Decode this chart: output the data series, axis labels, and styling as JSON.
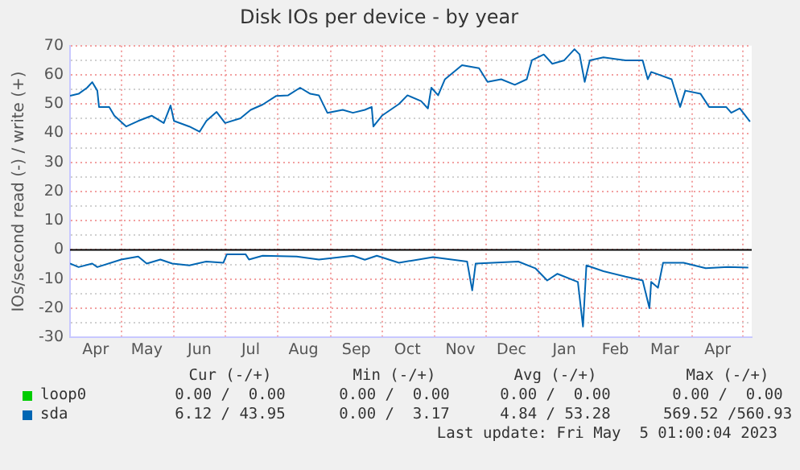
{
  "chart_data": {
    "type": "line",
    "title": "Disk IOs per device - by year",
    "ylabel": "IOs/second read (-) / write (+)",
    "xlim": [
      "2022-04-01",
      "2023-05-06"
    ],
    "xticks": [
      {
        "value": "2022-04-16",
        "label": "Apr"
      },
      {
        "value": "2022-05-01",
        "label": null
      },
      {
        "value": "2022-05-16",
        "label": "May"
      },
      {
        "value": "2022-06-01",
        "label": null
      },
      {
        "value": "2022-06-16",
        "label": "Jun"
      },
      {
        "value": "2022-07-01",
        "label": null
      },
      {
        "value": "2022-07-16",
        "label": "Jul"
      },
      {
        "value": "2022-08-01",
        "label": null
      },
      {
        "value": "2022-08-16",
        "label": "Aug"
      },
      {
        "value": "2022-09-01",
        "label": null
      },
      {
        "value": "2022-09-16",
        "label": "Sep"
      },
      {
        "value": "2022-10-01",
        "label": null
      },
      {
        "value": "2022-10-16",
        "label": "Oct"
      },
      {
        "value": "2022-11-01",
        "label": null
      },
      {
        "value": "2022-11-16",
        "label": "Nov"
      },
      {
        "value": "2022-12-01",
        "label": null
      },
      {
        "value": "2022-12-16",
        "label": "Dec"
      },
      {
        "value": "2023-01-01",
        "label": null
      },
      {
        "value": "2023-01-16",
        "label": "Jan"
      },
      {
        "value": "2023-02-01",
        "label": null
      },
      {
        "value": "2023-02-15",
        "label": "Feb"
      },
      {
        "value": "2023-03-01",
        "label": null
      },
      {
        "value": "2023-03-16",
        "label": "Mar"
      },
      {
        "value": "2023-04-01",
        "label": null
      },
      {
        "value": "2023-04-16",
        "label": "Apr"
      },
      {
        "value": "2023-05-01",
        "label": null
      }
    ],
    "ylim": [
      -30,
      70
    ],
    "yticks": [
      -30,
      {
        "value": -25,
        "label": null
      },
      -20,
      {
        "value": -15,
        "label": null
      },
      -10,
      {
        "value": -5,
        "label": null
      },
      0,
      {
        "value": 5,
        "label": null
      },
      10,
      {
        "value": 15,
        "label": null
      },
      20,
      {
        "value": 25,
        "label": null
      },
      30,
      {
        "value": 35,
        "label": null
      },
      40,
      {
        "value": 45,
        "label": null
      },
      50,
      {
        "value": 55,
        "label": null
      },
      60,
      {
        "value": 65,
        "label": null
      },
      70
    ],
    "grid": true,
    "legend": "bottom",
    "marker": "none",
    "line_style": "solid",
    "ref_lines": [
      {
        "axis": "y",
        "value": 0,
        "color": "#000000"
      }
    ],
    "series": [
      {
        "name": "loop0",
        "color": "#00cc00"
      },
      {
        "name": "sda",
        "color": "#0066b3",
        "x": [
          "2022-04-01",
          "2022-04-06",
          "2022-04-11",
          "2022-04-14",
          "2022-04-17",
          "2022-04-18",
          "2022-04-24",
          "2022-04-27",
          "2022-05-04",
          "2022-05-11",
          "2022-05-19",
          "2022-05-26",
          "2022-05-30",
          "2022-06-01",
          "2022-06-10",
          "2022-06-16",
          "2022-06-20",
          "2022-06-26",
          "2022-07-01",
          "2022-07-10",
          "2022-07-16",
          "2022-07-23",
          "2022-07-31",
          "2022-08-07",
          "2022-08-14",
          "2022-08-20",
          "2022-08-25",
          "2022-08-30",
          "2022-09-08",
          "2022-09-14",
          "2022-09-21",
          "2022-09-25",
          "2022-09-26",
          "2022-10-01",
          "2022-10-11",
          "2022-10-16",
          "2022-10-24",
          "2022-10-28",
          "2022-10-30",
          "2022-11-03",
          "2022-11-07",
          "2022-11-17",
          "2022-11-27",
          "2022-12-02",
          "2022-12-10",
          "2022-12-18",
          "2022-12-25",
          "2022-12-28",
          "2023-01-04",
          "2023-01-09",
          "2023-01-16",
          "2023-01-22",
          "2023-01-25",
          "2023-01-28",
          "2023-01-31",
          "2023-02-08",
          "2023-02-21",
          "2023-03-03",
          "2023-03-06",
          "2023-03-08",
          "2023-03-20",
          "2023-03-25",
          "2023-03-28",
          "2023-04-06",
          "2023-04-11",
          "2023-04-21",
          "2023-04-24",
          "2023-04-29",
          "2023-05-05"
        ],
        "values": [
          52.8,
          53.5,
          55.6,
          57.5,
          54.6,
          49,
          49,
          46,
          42.3,
          44.2,
          46,
          43.5,
          49.5,
          44.2,
          42.3,
          40.5,
          44.2,
          47.3,
          43.5,
          45.1,
          48,
          49.8,
          52.8,
          53,
          55.6,
          53.5,
          53,
          47,
          48,
          47,
          48,
          49,
          42.3,
          46,
          50,
          53,
          51,
          48.5,
          55.6,
          53,
          58.5,
          63.3,
          62.3,
          57.6,
          58.5,
          56.6,
          58.5,
          65,
          67,
          63.8,
          65,
          68.8,
          67,
          57.6,
          65,
          66,
          65,
          65,
          58.5,
          61,
          58.5,
          49,
          54.6,
          53.5,
          49,
          49,
          47,
          48.5,
          44
        ]
      },
      {
        "color": "#0066b3",
        "x": [
          "2022-04-01",
          "2022-04-06",
          "2022-04-14",
          "2022-04-17",
          "2022-05-01",
          "2022-05-11",
          "2022-05-16",
          "2022-05-24",
          "2022-05-31",
          "2022-06-10",
          "2022-06-20",
          "2022-06-30",
          "2022-07-02",
          "2022-07-13",
          "2022-07-15",
          "2022-07-23",
          "2022-08-12",
          "2022-08-25",
          "2022-09-14",
          "2022-09-21",
          "2022-09-28",
          "2022-10-11",
          "2022-10-31",
          "2022-11-20",
          "2022-11-23",
          "2022-11-25",
          "2022-12-20",
          "2022-12-30",
          "2023-01-06",
          "2023-01-12",
          "2023-01-24",
          "2023-01-27",
          "2023-01-29",
          "2023-02-08",
          "2023-02-21",
          "2023-03-03",
          "2023-03-07",
          "2023-03-08",
          "2023-03-12",
          "2023-03-15",
          "2023-03-27",
          "2023-04-09",
          "2023-04-22",
          "2023-05-04"
        ],
        "values": [
          -4.7,
          -5.9,
          -4.7,
          -5.9,
          -3.3,
          -2.3,
          -4.7,
          -3.3,
          -4.7,
          -5.3,
          -4,
          -4.4,
          -1.5,
          -1.5,
          -3.3,
          -2,
          -2.3,
          -3.3,
          -2,
          -3.4,
          -2,
          -4.4,
          -2.5,
          -4,
          -13.9,
          -4.7,
          -4,
          -6.3,
          -10.5,
          -8.2,
          -11,
          -26.3,
          -5.3,
          -7.3,
          -9.2,
          -10.5,
          -20,
          -11,
          -13,
          -4.4,
          -4.4,
          -6.3,
          -5.9,
          -6.1
        ]
      }
    ],
    "annotations": [
      "Cur (-/+)",
      "Min (-/+)",
      "Avg (-/+)",
      "Max (-/+)",
      "0.00 /  0.00",
      "0.00 /  0.00",
      "0.00 /  0.00",
      "0.00 /  0.00",
      "6.12 / 43.95",
      "0.00 /  3.17",
      "4.84 / 53.28",
      "569.52 /560.93",
      "Last update: Fri May  5 01:00:04 2023"
    ]
  }
}
